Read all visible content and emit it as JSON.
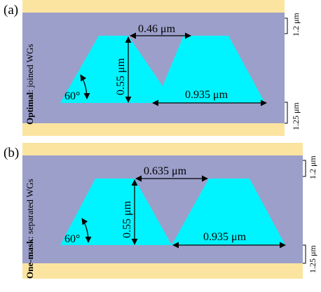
{
  "colors": {
    "cladding": "#fbe49f",
    "substrate": "#9c9fca",
    "waveguide": "#00f4ff",
    "text": "#000000"
  },
  "panels": [
    {
      "label": "(a)",
      "side_title_bold": "Optimal",
      "side_title_rest": ": joined WGs",
      "gap_label": "0.46 μm",
      "height_label": "0.55 μm",
      "base_label": "0.935 μm",
      "angle_label": "60°",
      "top_thickness_label": "1.2 μm",
      "bottom_thickness_label": "1.25 μm"
    },
    {
      "label": "(b)",
      "side_title_bold": "One-mask",
      "side_title_rest": ": separated WGs",
      "gap_label": "0.635 μm",
      "height_label": "0.55 μm",
      "base_label": "0.935 μm",
      "angle_label": "60°",
      "top_thickness_label": "1.2 μm",
      "bottom_thickness_label": "1.25 μm"
    }
  ]
}
